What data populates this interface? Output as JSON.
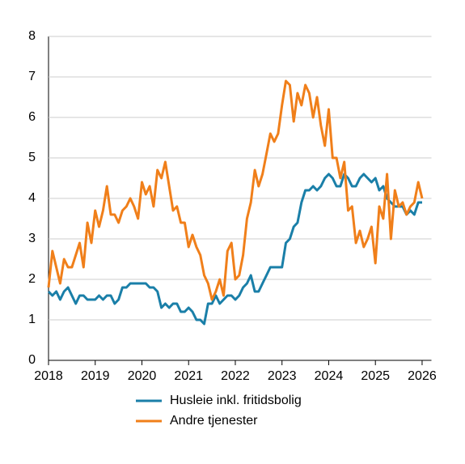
{
  "chart_data": {
    "type": "line",
    "x": [
      2018,
      2018.083,
      2018.167,
      2018.25,
      2018.333,
      2018.417,
      2018.5,
      2018.583,
      2018.667,
      2018.75,
      2018.833,
      2018.917,
      2019,
      2019.083,
      2019.167,
      2019.25,
      2019.333,
      2019.417,
      2019.5,
      2019.583,
      2019.667,
      2019.75,
      2019.833,
      2019.917,
      2020,
      2020.083,
      2020.167,
      2020.25,
      2020.333,
      2020.417,
      2020.5,
      2020.583,
      2020.667,
      2020.75,
      2020.833,
      2020.917,
      2021,
      2021.083,
      2021.167,
      2021.25,
      2021.333,
      2021.417,
      2021.5,
      2021.583,
      2021.667,
      2021.75,
      2021.833,
      2021.917,
      2022,
      2022.083,
      2022.167,
      2022.25,
      2022.333,
      2022.417,
      2022.5,
      2022.583,
      2022.667,
      2022.75,
      2022.833,
      2022.917,
      2023,
      2023.083,
      2023.167,
      2023.25,
      2023.333,
      2023.417,
      2023.5,
      2023.583,
      2023.667,
      2023.75,
      2023.833,
      2023.917,
      2024,
      2024.083,
      2024.167,
      2024.25,
      2024.333,
      2024.417,
      2024.5,
      2024.583,
      2024.667,
      2024.75,
      2024.833,
      2024.917,
      2025,
      2025.083,
      2025.167,
      2025.25,
      2025.333,
      2025.417,
      2025.5,
      2025.583,
      2025.667,
      2025.75,
      2025.833,
      2025.917,
      2026
    ],
    "series": [
      {
        "name": "Husleie inkl. fritidsbolig",
        "color": "#1a7fa8",
        "values": [
          1.7,
          1.6,
          1.7,
          1.5,
          1.7,
          1.8,
          1.6,
          1.4,
          1.6,
          1.6,
          1.5,
          1.5,
          1.5,
          1.6,
          1.5,
          1.6,
          1.6,
          1.4,
          1.5,
          1.8,
          1.8,
          1.9,
          1.9,
          1.9,
          1.9,
          1.9,
          1.8,
          1.8,
          1.7,
          1.3,
          1.4,
          1.3,
          1.4,
          1.4,
          1.2,
          1.2,
          1.3,
          1.2,
          1.0,
          1.0,
          0.9,
          1.4,
          1.4,
          1.6,
          1.4,
          1.5,
          1.6,
          1.6,
          1.5,
          1.6,
          1.8,
          1.9,
          2.1,
          1.7,
          1.7,
          1.9,
          2.1,
          2.3,
          2.3,
          2.3,
          2.3,
          2.9,
          3.0,
          3.3,
          3.4,
          3.9,
          4.2,
          4.2,
          4.3,
          4.2,
          4.3,
          4.5,
          4.6,
          4.5,
          4.3,
          4.3,
          4.6,
          4.5,
          4.3,
          4.3,
          4.5,
          4.6,
          4.5,
          4.4,
          4.5,
          4.2,
          4.3,
          4.0,
          3.9,
          3.8,
          3.8,
          3.8,
          3.6,
          3.7,
          3.6,
          3.9,
          3.9
        ]
      },
      {
        "name": "Andre tjenester",
        "color": "#f07f1a",
        "values": [
          1.8,
          2.7,
          2.3,
          1.9,
          2.5,
          2.3,
          2.3,
          2.6,
          2.9,
          2.3,
          3.4,
          2.9,
          3.7,
          3.3,
          3.7,
          4.3,
          3.6,
          3.6,
          3.4,
          3.7,
          3.8,
          4.0,
          3.8,
          3.5,
          4.4,
          4.1,
          4.3,
          3.8,
          4.7,
          4.5,
          4.9,
          4.3,
          3.7,
          3.8,
          3.4,
          3.4,
          2.8,
          3.1,
          2.8,
          2.6,
          2.1,
          1.9,
          1.5,
          1.7,
          2.0,
          1.6,
          2.7,
          2.9,
          2.0,
          2.1,
          2.6,
          3.5,
          3.9,
          4.7,
          4.3,
          4.6,
          5.1,
          5.6,
          5.4,
          5.6,
          6.3,
          6.9,
          6.8,
          5.9,
          6.6,
          6.3,
          6.8,
          6.6,
          6.0,
          6.5,
          5.8,
          5.3,
          6.2,
          5.0,
          5.0,
          4.5,
          4.9,
          3.7,
          3.8,
          2.9,
          3.2,
          2.8,
          3.0,
          3.3,
          2.4,
          3.8,
          3.5,
          4.6,
          3.0,
          4.2,
          3.8,
          3.9,
          3.6,
          3.8,
          3.9,
          4.4,
          4.0
        ]
      }
    ],
    "xlim": [
      2018,
      2026.2
    ],
    "xticks": [
      2018,
      2019,
      2020,
      2021,
      2022,
      2023,
      2024,
      2025,
      2026
    ],
    "ylim": [
      0,
      8
    ],
    "yticks": [
      0,
      1,
      2,
      3,
      4,
      5,
      6,
      7,
      8
    ],
    "grid": true
  }
}
